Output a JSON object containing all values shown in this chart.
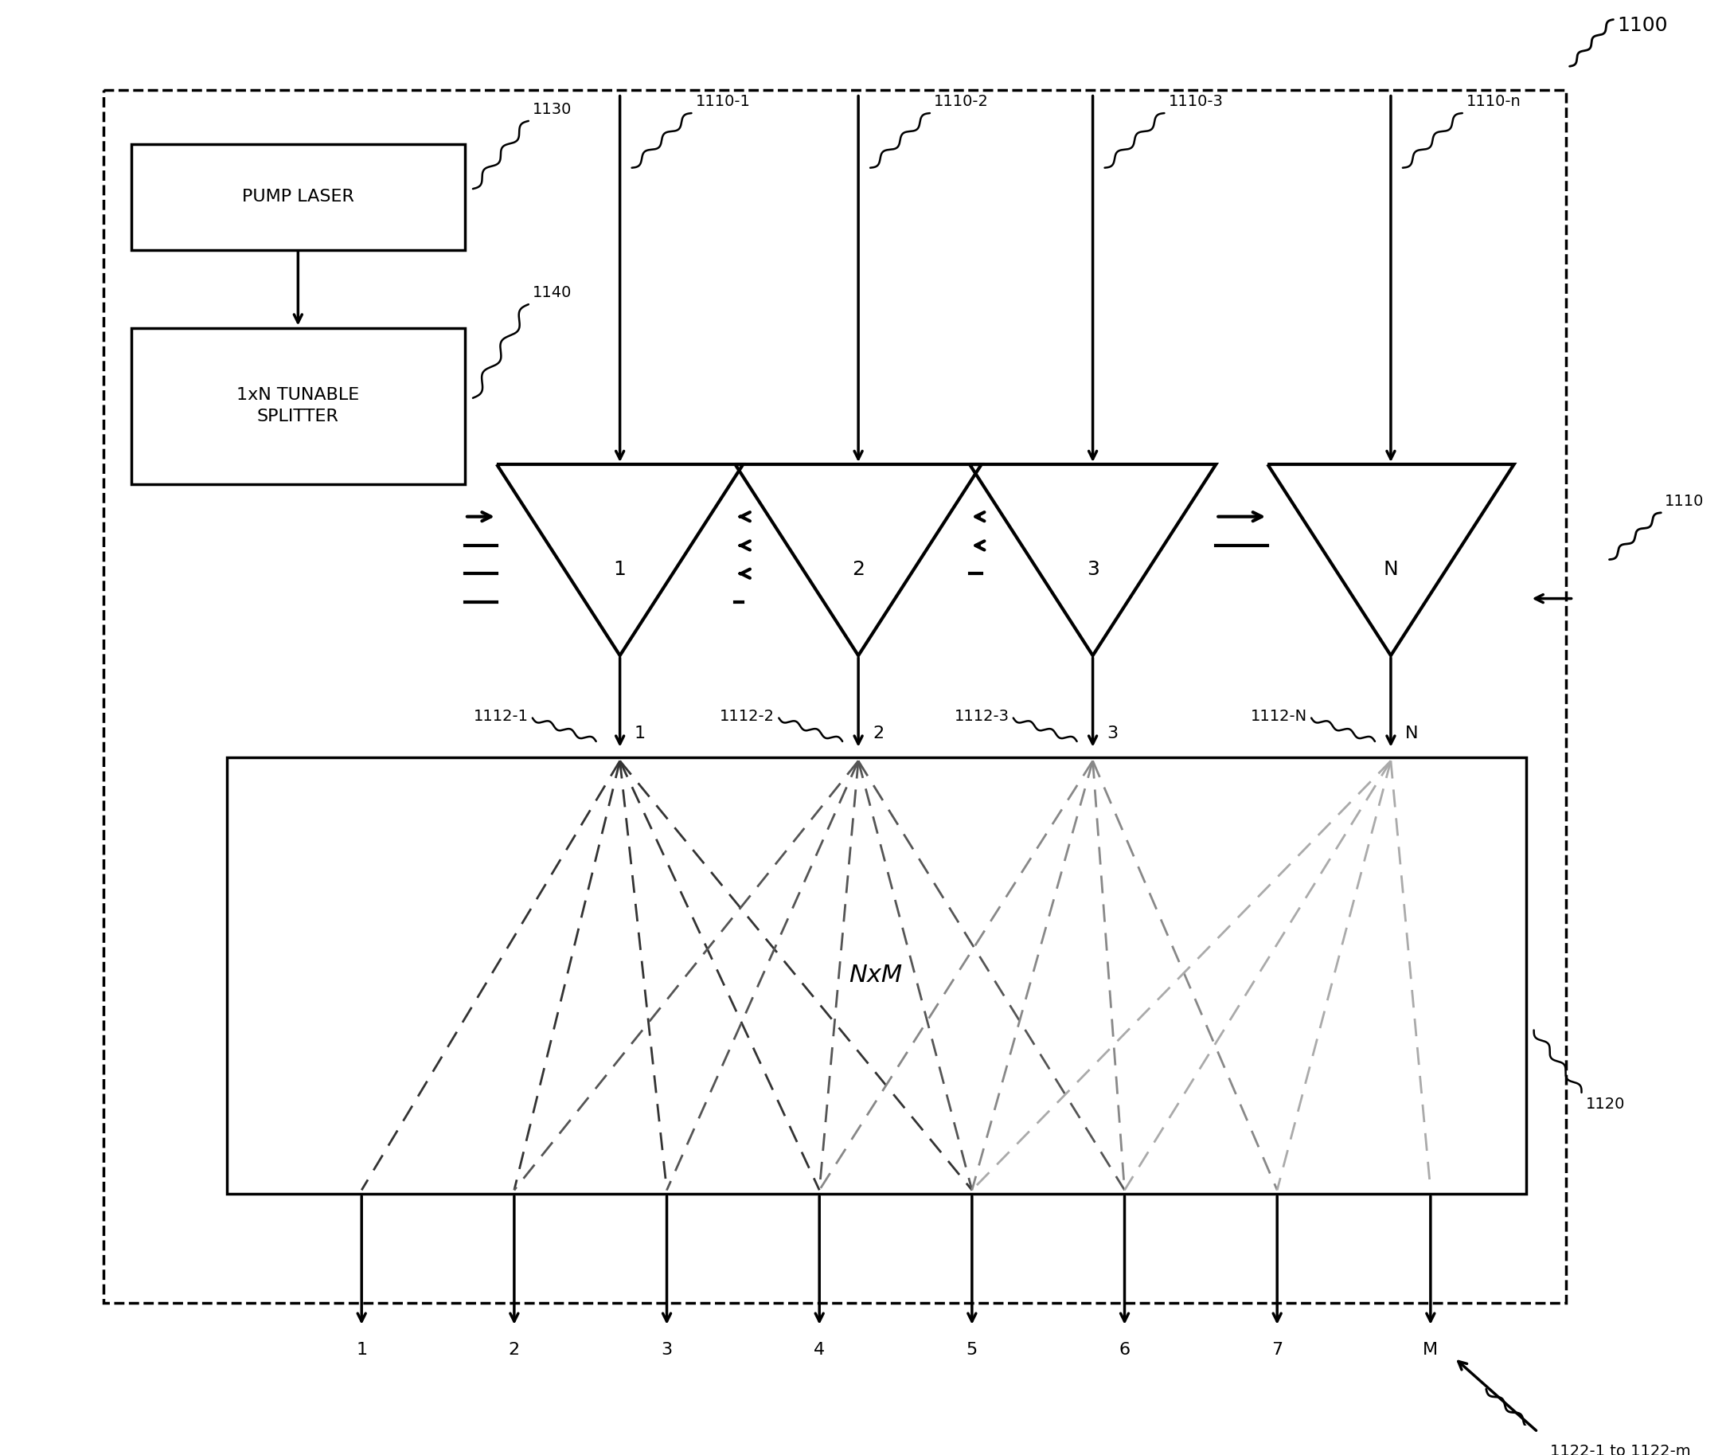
{
  "bg_color": "#ffffff",
  "lc": "#000000",
  "figure_label": "1100",
  "pump_laser_label": "PUMP LASER",
  "splitter_label": "1xN TUNABLE\nSPLITTER",
  "pump_laser_ref": "1130",
  "splitter_ref": "1140",
  "amp_refs": [
    "1110-1",
    "1110-2",
    "1110-3",
    "1110-n"
  ],
  "amp_labels": [
    "1",
    "2",
    "3",
    "N"
  ],
  "port_refs": [
    "1112-1",
    "1112-2",
    "1112-3",
    "1112-N"
  ],
  "port_labels": [
    "1",
    "2",
    "3",
    "N"
  ],
  "switch_label": "NxM",
  "switch_ref": "1120",
  "output_labels": [
    "1",
    "2",
    "3",
    "4",
    "5",
    "6",
    "7",
    "M"
  ],
  "output_ref": "1122-1 to 1122-m",
  "module_ref": "1110",
  "dashes_colors": [
    "#333333",
    "#555555",
    "#888888",
    "#aaaaaa"
  ],
  "font_size": 15,
  "ref_font_size": 14,
  "label_font_size": 16
}
